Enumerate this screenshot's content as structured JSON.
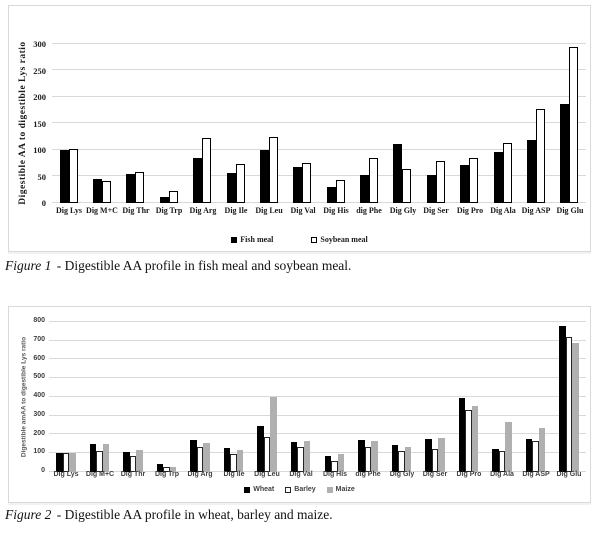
{
  "captions": [
    {
      "label": "Figure 1",
      "text": "- Digestible AA profile in fish meal and soybean meal."
    },
    {
      "label": "Figure 2",
      "text": "- Digestible AA profile in wheat, barley and maize."
    }
  ],
  "colors": {
    "black_series": "#000000",
    "white_series_fill": "#ffffff",
    "white_series_border": "#000000",
    "maize_gray": "#b0b0b0",
    "gridline": "#d9d9d9",
    "chart_border": "#d9d9d9"
  },
  "chart_data": [
    {
      "type": "bar",
      "title": "",
      "xlabel": "",
      "ylabel": "Digestible AA to digestible Lys ratio",
      "ylim": [
        0,
        300
      ],
      "ytick_step": 50,
      "grid": true,
      "legend_position": "bottom",
      "categories": [
        "Dig Lys",
        "Dig M+C",
        "Dig Thr",
        "Dig Trp",
        "Dig Arg",
        "Dig Ile",
        "Dig Leu",
        "Dig Val",
        "Dig His",
        "dig Phe",
        "Dig Gly",
        "Dig Ser",
        "Dig Pro",
        "Dig Ala",
        "Dig ASP",
        "Dig Glu"
      ],
      "series": [
        {
          "name": "Fish meal",
          "fill": "#000000",
          "border": null,
          "values": [
            100,
            45,
            54,
            12,
            84,
            57,
            100,
            67,
            30,
            53,
            112,
            53,
            72,
            96,
            119,
            186
          ]
        },
        {
          "name": "Soybean meal",
          "fill": "#ffffff",
          "border": "#000000",
          "values": [
            101,
            42,
            59,
            22,
            123,
            74,
            124,
            76,
            43,
            84,
            65,
            79,
            85,
            113,
            178,
            295
          ]
        }
      ]
    },
    {
      "type": "bar",
      "title": "",
      "xlabel": "",
      "ylabel": "Digestible amAA to digestible Lys ratio",
      "ylim": [
        0,
        800
      ],
      "ytick_step": 100,
      "grid": true,
      "legend_position": "bottom",
      "categories": [
        "Dig Lys",
        "Dig M+C",
        "Dig Thr",
        "Dig Trp",
        "Dig Arg",
        "Dig Ile",
        "Dig Leu",
        "Dig Val",
        "Dig His",
        "dig Phe",
        "Dig Gly",
        "Dig Ser",
        "Dig Pro",
        "Dig Ala",
        "Dig ASP",
        "Dig Glu"
      ],
      "series": [
        {
          "name": "Wheat",
          "fill": "#000000",
          "border": null,
          "values": [
            100,
            148,
            104,
            45,
            170,
            130,
            245,
            158,
            86,
            171,
            145,
            176,
            395,
            120,
            176,
            778
          ]
        },
        {
          "name": "Barley",
          "fill": "#ffffff",
          "border": "#262626",
          "values": [
            100,
            110,
            84,
            29,
            135,
            98,
            186,
            133,
            60,
            134,
            112,
            123,
            332,
            112,
            165,
            720
          ]
        },
        {
          "name": "Maize",
          "fill": "#b0b0b0",
          "border": null,
          "values": [
            100,
            151,
            118,
            27,
            153,
            118,
            400,
            164,
            98,
            164,
            133,
            181,
            350,
            265,
            234,
            688
          ]
        }
      ]
    }
  ]
}
